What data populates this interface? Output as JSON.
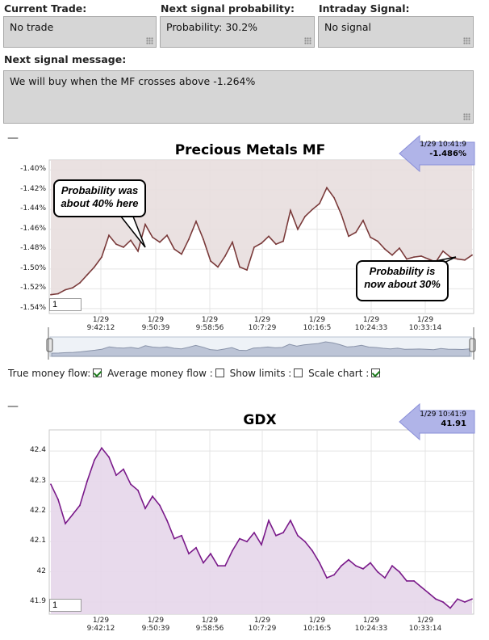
{
  "fields": {
    "current_trade_label": "Current Trade:",
    "current_trade_value": "No trade",
    "next_prob_label": "Next signal probability:",
    "next_prob_value": "Probability: 30.2%",
    "intraday_label": "Intraday Signal:",
    "intraday_value": "No signal",
    "message_label": "Next signal message:",
    "message_value": "We will buy when the MF crosses above -1.264%"
  },
  "chart1": {
    "title": "Precious Metals MF",
    "collapse_icon": "minus-icon",
    "latest_time": "1/29 10:41:9",
    "latest_value": "-1.486%",
    "y_ticks": [
      "-1.40%",
      "-1.42%",
      "-1.44%",
      "-1.46%",
      "-1.48%",
      "-1.50%",
      "-1.52%",
      "-1.54%"
    ],
    "x_ticks": [
      [
        "1/29",
        "9:42:12"
      ],
      [
        "1/29",
        "9:50:39"
      ],
      [
        "1/29",
        "9:58:56"
      ],
      [
        "1/29",
        "10:7:29"
      ],
      [
        "1/29",
        "10:16:5"
      ],
      [
        "1/29",
        "10:24:33"
      ],
      [
        "1/29",
        "10:33:14"
      ]
    ],
    "input_value": "1",
    "callout_left": "Probability was about 40% here",
    "callout_right": "Probability is now about 30%"
  },
  "options": {
    "true_mf": "True money flow:",
    "avg_mf": "Average money flow :",
    "show_limits": "Show limits :",
    "scale_chart": "Scale chart :",
    "true_mf_checked": true,
    "avg_mf_checked": false,
    "show_limits_checked": false,
    "scale_chart_checked": true
  },
  "chart2": {
    "title": "GDX",
    "collapse_icon": "minus-icon",
    "latest_time": "1/29 10:41:9",
    "latest_value": "41.91",
    "y_ticks": [
      "42.4",
      "42.3",
      "42.2",
      "42.1",
      "42",
      "41.9"
    ],
    "x_ticks": [
      [
        "1/29",
        "9:42:12"
      ],
      [
        "1/29",
        "9:50:39"
      ],
      [
        "1/29",
        "9:58:56"
      ],
      [
        "1/29",
        "10:7:29"
      ],
      [
        "1/29",
        "10:16:5"
      ],
      [
        "1/29",
        "10:24:33"
      ],
      [
        "1/29",
        "10:33:14"
      ]
    ],
    "input_value": "1"
  },
  "colors": {
    "mf_line": "#7a3a3a",
    "mf_fill": "#e8dede",
    "gdx_line": "#7a1a8a",
    "gdx_fill": "#e6d6ea",
    "arrow_fill": "#b0b4e8"
  },
  "chart_data": [
    {
      "type": "line",
      "title": "Precious Metals MF",
      "ylim": [
        -1.545,
        -1.39
      ],
      "x": [
        "9:38",
        "9:40",
        "9:42:12",
        "9:44",
        "9:46",
        "9:48",
        "9:49",
        "9:50:39",
        "9:51",
        "9:52",
        "9:53",
        "9:54",
        "9:55",
        "9:56",
        "9:57",
        "9:58:56",
        "9:59",
        "10:0",
        "10:1",
        "10:2",
        "10:3",
        "10:4",
        "10:5",
        "10:6",
        "10:7:29",
        "10:8",
        "10:9",
        "10:10",
        "10:11",
        "10:12",
        "10:13",
        "10:14",
        "10:15",
        "10:16:5",
        "10:17",
        "10:18",
        "10:19",
        "10:20",
        "10:21",
        "10:22",
        "10:23",
        "10:24:33",
        "10:25",
        "10:26",
        "10:27",
        "10:28",
        "10:29",
        "10:30",
        "10:31",
        "10:32",
        "10:33:14",
        "10:34",
        "10:35",
        "10:36",
        "10:37",
        "10:38",
        "10:39",
        "10:40",
        "10:41:9"
      ],
      "values": [
        -1.526,
        -1.525,
        -1.521,
        -1.519,
        -1.514,
        -1.506,
        -1.498,
        -1.488,
        -1.466,
        -1.475,
        -1.478,
        -1.471,
        -1.482,
        -1.455,
        -1.468,
        -1.473,
        -1.466,
        -1.48,
        -1.485,
        -1.47,
        -1.452,
        -1.47,
        -1.492,
        -1.498,
        -1.487,
        -1.473,
        -1.498,
        -1.501,
        -1.478,
        -1.474,
        -1.467,
        -1.475,
        -1.472,
        -1.441,
        -1.46,
        -1.447,
        -1.44,
        -1.434,
        -1.418,
        -1.428,
        -1.445,
        -1.467,
        -1.463,
        -1.451,
        -1.468,
        -1.472,
        -1.48,
        -1.486,
        -1.479,
        -1.49,
        -1.488,
        -1.487,
        -1.49,
        -1.493,
        -1.482,
        -1.488,
        -1.49,
        -1.491,
        -1.486
      ]
    },
    {
      "type": "line",
      "title": "GDX",
      "ylim": [
        41.86,
        42.47
      ],
      "x": [
        "9:38",
        "9:40",
        "9:42:12",
        "9:44",
        "9:46",
        "9:48",
        "9:49",
        "9:50:39",
        "9:51",
        "9:52",
        "9:53",
        "9:54",
        "9:55",
        "9:56",
        "9:57",
        "9:58:56",
        "9:59",
        "10:0",
        "10:1",
        "10:2",
        "10:3",
        "10:4",
        "10:5",
        "10:6",
        "10:7:29",
        "10:8",
        "10:9",
        "10:10",
        "10:11",
        "10:12",
        "10:13",
        "10:14",
        "10:15",
        "10:16:5",
        "10:17",
        "10:18",
        "10:19",
        "10:20",
        "10:21",
        "10:22",
        "10:23",
        "10:24:33",
        "10:25",
        "10:26",
        "10:27",
        "10:28",
        "10:29",
        "10:30",
        "10:31",
        "10:32",
        "10:33:14",
        "10:34",
        "10:35",
        "10:36",
        "10:37",
        "10:38",
        "10:39",
        "10:40",
        "10:41:9"
      ],
      "values": [
        42.29,
        42.24,
        42.16,
        42.19,
        42.22,
        42.3,
        42.37,
        42.41,
        42.38,
        42.32,
        42.34,
        42.29,
        42.27,
        42.21,
        42.25,
        42.22,
        42.17,
        42.11,
        42.12,
        42.06,
        42.08,
        42.03,
        42.06,
        42.02,
        42.02,
        42.07,
        42.11,
        42.1,
        42.13,
        42.09,
        42.17,
        42.12,
        42.13,
        42.17,
        42.12,
        42.1,
        42.07,
        42.03,
        41.98,
        41.99,
        42.02,
        42.04,
        42.02,
        42.01,
        42.03,
        42.0,
        41.98,
        42.02,
        42.0,
        41.97,
        41.97,
        41.95,
        41.93,
        41.91,
        41.9,
        41.88,
        41.91,
        41.9,
        41.91
      ]
    }
  ]
}
